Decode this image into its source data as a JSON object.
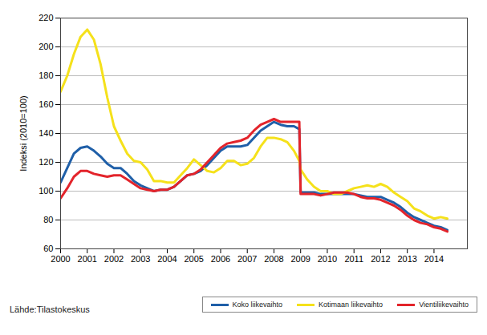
{
  "chart_data": {
    "type": "line",
    "y_label": "Indeksi (2010=100)",
    "source": "Lähde:Tilastokeskus",
    "x": [
      2000.0,
      2000.25,
      2000.5,
      2000.75,
      2001.0,
      2001.25,
      2001.5,
      2001.75,
      2002.0,
      2002.25,
      2002.5,
      2002.75,
      2003.0,
      2003.25,
      2003.5,
      2003.75,
      2004.0,
      2004.25,
      2004.5,
      2004.75,
      2005.0,
      2005.25,
      2005.5,
      2005.75,
      2006.0,
      2006.25,
      2006.5,
      2006.75,
      2007.0,
      2007.25,
      2007.5,
      2007.75,
      2008.0,
      2008.25,
      2008.5,
      2008.75,
      2008.95,
      2009.0,
      2009.25,
      2009.5,
      2009.75,
      2010.0,
      2010.25,
      2010.5,
      2010.75,
      2011.0,
      2011.25,
      2011.5,
      2011.75,
      2012.0,
      2012.25,
      2012.5,
      2012.75,
      2013.0,
      2013.25,
      2013.5,
      2013.75,
      2014.0,
      2014.25,
      2014.5
    ],
    "series": [
      {
        "name": "Koko liikevaihto",
        "color": "#1f5fa8",
        "values": [
          106,
          116,
          126,
          130,
          131,
          128,
          124,
          119,
          116,
          116,
          112,
          107,
          104,
          102,
          100,
          101,
          101,
          103,
          107,
          111,
          112,
          114,
          118,
          123,
          128,
          131,
          131,
          131,
          132,
          137,
          142,
          145,
          148,
          146,
          145,
          145,
          143,
          99,
          99,
          99,
          98,
          98,
          98,
          98,
          98,
          98,
          97,
          96,
          96,
          96,
          94,
          92,
          89,
          85,
          82,
          80,
          78,
          76,
          75,
          73
        ]
      },
      {
        "name": "Kotimaan liikevaihto",
        "color": "#f5e11b",
        "values": [
          169,
          180,
          195,
          207,
          212,
          205,
          188,
          165,
          145,
          135,
          126,
          121,
          120,
          115,
          107,
          107,
          106,
          106,
          111,
          116,
          122,
          118,
          114,
          113,
          116,
          121,
          121,
          118,
          119,
          123,
          131,
          137,
          137,
          136,
          134,
          128,
          121,
          115,
          108,
          103,
          100,
          100,
          98,
          98,
          100,
          102,
          103,
          104,
          103,
          105,
          103,
          99,
          96,
          93,
          88,
          86,
          83,
          81,
          82,
          81
        ]
      },
      {
        "name": "Vientiliikevaihto",
        "color": "#e3242b",
        "values": [
          95,
          102,
          110,
          114,
          114,
          112,
          111,
          110,
          111,
          111,
          108,
          105,
          102,
          101,
          100,
          101,
          101,
          103,
          107,
          111,
          112,
          115,
          120,
          125,
          130,
          133,
          134,
          135,
          137,
          142,
          146,
          148,
          150,
          148,
          148,
          148,
          148,
          98,
          98,
          98,
          97,
          98,
          99,
          99,
          99,
          98,
          96,
          95,
          95,
          94,
          92,
          90,
          87,
          83,
          80,
          78,
          77,
          75,
          74,
          72
        ]
      }
    ],
    "xlim": [
      2000,
      2015.25
    ],
    "xticks": [
      2000,
      2001,
      2002,
      2003,
      2004,
      2005,
      2006,
      2007,
      2008,
      2009,
      2010,
      2011,
      2012,
      2013,
      2014
    ],
    "ylim": [
      60,
      220
    ],
    "yticks": [
      60,
      80,
      100,
      120,
      140,
      160,
      180,
      200,
      220
    ],
    "grid": true,
    "legend": "bottom-right"
  }
}
